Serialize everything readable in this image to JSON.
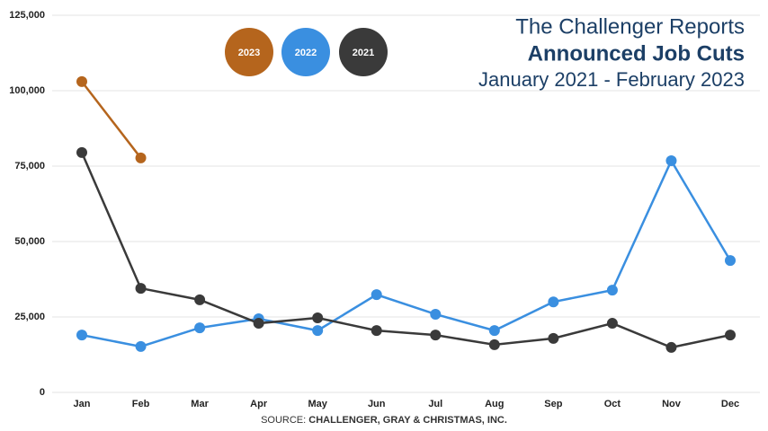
{
  "chart_data": {
    "type": "line",
    "title": "The Challenger Reports",
    "subtitle": "Announced Job Cuts",
    "period": "January 2021 - February 2023",
    "source_label": "SOURCE:",
    "source": "CHALLENGER, GRAY & CHRISTMAS, INC.",
    "categories": [
      "Jan",
      "Feb",
      "Mar",
      "Apr",
      "May",
      "Jun",
      "Jul",
      "Aug",
      "Sep",
      "Oct",
      "Nov",
      "Dec"
    ],
    "series": [
      {
        "name": "2023",
        "color": "#b5651d",
        "values": [
          103000,
          77700,
          null,
          null,
          null,
          null,
          null,
          null,
          null,
          null,
          null,
          null
        ]
      },
      {
        "name": "2022",
        "color": "#3a8fe0",
        "values": [
          19000,
          15200,
          21400,
          24400,
          20500,
          32400,
          25900,
          20500,
          30000,
          33900,
          76800,
          43700
        ]
      },
      {
        "name": "2021",
        "color": "#3a3a3a",
        "values": [
          79500,
          34500,
          30700,
          22900,
          24700,
          20500,
          19000,
          15800,
          17900,
          22900,
          14900,
          19000
        ]
      }
    ],
    "ylim": [
      0,
      125000
    ],
    "yticks": [
      0,
      {
        "value": 25000,
        "label": "25,000"
      },
      {
        "value": 50000,
        "label": "50,000"
      },
      {
        "value": 75000,
        "label": "75,000"
      },
      {
        "value": 100000,
        "label": "100,000"
      },
      {
        "value": 125000,
        "label": "125,000"
      }
    ],
    "grid": true
  }
}
